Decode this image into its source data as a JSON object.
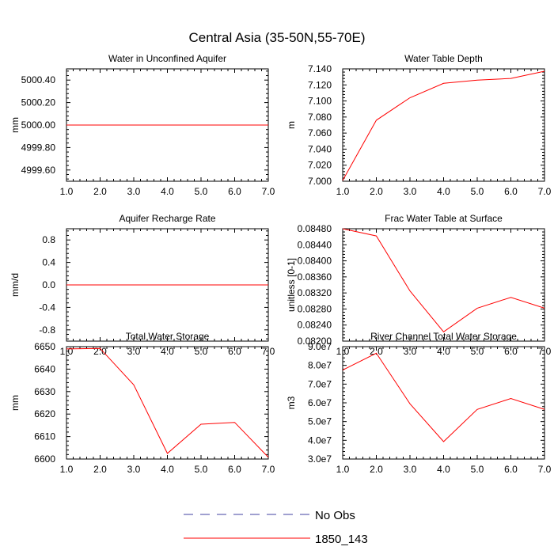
{
  "figure": {
    "title": "Central Asia (35-50N,55-70E)"
  },
  "chart_data": [
    {
      "type": "line",
      "title": "Water in Unconfined Aquifer",
      "xlabel": "",
      "ylabel": "mm",
      "xlim": [
        1.0,
        7.0
      ],
      "ylim": [
        4999.5,
        5000.5
      ],
      "x_ticks": [
        "1.0",
        "2.0",
        "3.0",
        "4.0",
        "5.0",
        "6.0",
        "7.0"
      ],
      "y_ticks": [
        "4999.60",
        "4999.80",
        "5000.00",
        "5000.20",
        "5000.40"
      ],
      "series": [
        {
          "name": "1850_143",
          "color": "#ff0000",
          "x": [
            1,
            2,
            3,
            4,
            5,
            6,
            7
          ],
          "values": [
            5000.0,
            5000.0,
            5000.0,
            5000.0,
            5000.0,
            5000.0,
            5000.0
          ]
        }
      ]
    },
    {
      "type": "line",
      "title": "Water Table Depth",
      "xlabel": "",
      "ylabel": "m",
      "xlim": [
        1.0,
        7.0
      ],
      "ylim": [
        7.0,
        7.14
      ],
      "x_ticks": [
        "1.0",
        "2.0",
        "3.0",
        "4.0",
        "5.0",
        "6.0",
        "7.0"
      ],
      "y_ticks": [
        "7.000",
        "7.020",
        "7.040",
        "7.060",
        "7.080",
        "7.100",
        "7.120",
        "7.140"
      ],
      "series": [
        {
          "name": "1850_143",
          "color": "#ff0000",
          "x": [
            1,
            2,
            3,
            4,
            5,
            6,
            7
          ],
          "values": [
            7.001,
            7.076,
            7.104,
            7.122,
            7.126,
            7.128,
            7.137
          ]
        }
      ]
    },
    {
      "type": "line",
      "title": "Aquifer Recharge Rate",
      "xlabel": "",
      "ylabel": "mm/d",
      "xlim": [
        1.0,
        7.0
      ],
      "ylim": [
        -1.0,
        1.0
      ],
      "x_ticks": [
        "1.0",
        "2.0",
        "3.0",
        "4.0",
        "5.0",
        "6.0",
        "7.0"
      ],
      "y_ticks": [
        "-0.8",
        "-0.4",
        "0.0",
        "0.4",
        "0.8"
      ],
      "series": [
        {
          "name": "1850_143",
          "color": "#ff0000",
          "x": [
            1,
            2,
            3,
            4,
            5,
            6,
            7
          ],
          "values": [
            0.0,
            0.0,
            0.0,
            0.0,
            0.0,
            0.0,
            0.0
          ]
        }
      ]
    },
    {
      "type": "line",
      "title": "Frac Water Table at Surface",
      "xlabel": "",
      "ylabel": "unitless [0-1]",
      "xlim": [
        1.0,
        7.0
      ],
      "ylim": [
        0.082,
        0.0848
      ],
      "x_ticks": [
        "1.0",
        "2.0",
        "3.0",
        "4.0",
        "5.0",
        "6.0",
        "7.0"
      ],
      "y_ticks": [
        "0.08200",
        "0.08240",
        "0.08280",
        "0.08320",
        "0.08360",
        "0.08400",
        "0.08440",
        "0.08480"
      ],
      "series": [
        {
          "name": "1850_143",
          "color": "#ff0000",
          "x": [
            1,
            2,
            3,
            4,
            5,
            6,
            7
          ],
          "values": [
            0.0848,
            0.08462,
            0.08325,
            0.08223,
            0.08282,
            0.08309,
            0.08282
          ]
        }
      ]
    },
    {
      "type": "line",
      "title": "Total Water Storage",
      "xlabel": "",
      "ylabel": "mm",
      "xlim": [
        1.0,
        7.0
      ],
      "ylim": [
        6600,
        6650
      ],
      "x_ticks": [
        "1.0",
        "2.0",
        "3.0",
        "4.0",
        "5.0",
        "6.0",
        "7.0"
      ],
      "y_ticks": [
        "6600",
        "6610",
        "6620",
        "6630",
        "6640",
        "6650"
      ],
      "series": [
        {
          "name": "1850_143",
          "color": "#ff0000",
          "x": [
            1,
            2,
            3,
            4,
            5,
            6,
            7
          ],
          "values": [
            6649.0,
            6649.2,
            6633.0,
            6602.5,
            6615.5,
            6616.3,
            6600.8
          ]
        }
      ]
    },
    {
      "type": "line",
      "title": "River Channel Total Water Storage",
      "xlabel": "",
      "ylabel": "m3",
      "xlim": [
        1.0,
        7.0
      ],
      "ylim": [
        30000000,
        90000000
      ],
      "x_ticks": [
        "1.0",
        "2.0",
        "3.0",
        "4.0",
        "5.0",
        "6.0",
        "7.0"
      ],
      "y_ticks": [
        "3.0e7",
        "4.0e7",
        "5.0e7",
        "6.0e7",
        "7.0e7",
        "8.0e7",
        "9.0e7"
      ],
      "series": [
        {
          "name": "1850_143",
          "color": "#ff0000",
          "x": [
            1,
            2,
            3,
            4,
            5,
            6,
            7
          ],
          "values": [
            77500000,
            86500000,
            59500000,
            39300000,
            56500000,
            62300000,
            56500000
          ]
        }
      ]
    }
  ],
  "legend": {
    "placement": "bottom-center",
    "items": [
      {
        "label": "No Obs",
        "color": "#4040a0",
        "dash": "dashed"
      },
      {
        "label": "1850_143",
        "color": "#ff0000",
        "dash": "solid"
      }
    ]
  }
}
